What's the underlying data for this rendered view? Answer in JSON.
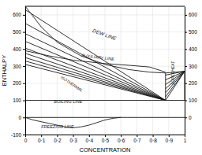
{
  "chart_data": {
    "type": "line",
    "color": "#1a1a1a",
    "grid": true,
    "xlabel": "CONCENTRATION",
    "ylabel": "ENTHALPY",
    "xlim": [
      0,
      1.0
    ],
    "ylim": [
      -100,
      650
    ],
    "xticks": [
      0,
      {
        "value": 0.1,
        "label": "0·1"
      },
      {
        "value": 0.2,
        "label": "0·2"
      },
      {
        "value": 0.3,
        "label": "0·3"
      },
      {
        "value": 0.4,
        "label": "0·4"
      },
      {
        "value": 0.5,
        "label": "0·5"
      },
      {
        "value": 0.6,
        "label": "0·6"
      },
      {
        "value": 0.7,
        "label": "0·7"
      },
      {
        "value": 0.8,
        "label": "0·8"
      },
      {
        "value": 0.9,
        "label": "0·9"
      },
      1
    ],
    "yticks": [
      -100,
      0,
      100,
      200,
      300,
      400,
      500,
      600
    ],
    "y2lim": [
      -100,
      650
    ],
    "y2ticks": [
      0,
      100,
      200,
      300,
      400,
      500,
      600
    ],
    "series": [
      {
        "x": [
          0.0,
          0.88
        ],
        "values": [
          310,
          100
        ]
      },
      {
        "x": [
          0.0,
          0.88
        ],
        "values": [
          330,
          100
        ]
      },
      {
        "x": [
          0.0,
          0.88
        ],
        "values": [
          350,
          100
        ]
      },
      {
        "x": [
          0.0,
          0.88
        ],
        "values": [
          375,
          100
        ]
      },
      {
        "x": [
          0.0,
          0.88
        ],
        "values": [
          405,
          100
        ]
      },
      {
        "x": [
          0.0,
          0.88
        ],
        "values": [
          445,
          100
        ]
      },
      {
        "x": [
          0.0,
          0.88
        ],
        "values": [
          490,
          100
        ]
      },
      {
        "x": [
          0.0,
          0.88
        ],
        "values": [
          550,
          100
        ]
      },
      {
        "x": [
          0.0,
          0.88
        ],
        "values": [
          630,
          100
        ]
      },
      {
        "x": [
          0.0,
          0.15,
          0.3,
          0.5,
          0.65,
          0.78,
          0.88
        ],
        "values": [
          390,
          360,
          335,
          315,
          305,
          295,
          265
        ]
      },
      {
        "x": [
          0.88,
          1.0
        ],
        "values": [
          100,
          270
        ]
      },
      {
        "x": [
          0.88,
          1.0
        ],
        "values": [
          120,
          270
        ]
      },
      {
        "x": [
          0.88,
          1.0
        ],
        "values": [
          145,
          270
        ]
      },
      {
        "x": [
          0.88,
          1.0
        ],
        "values": [
          168,
          270
        ]
      },
      {
        "x": [
          0.88,
          1.0
        ],
        "values": [
          192,
          270
        ]
      },
      {
        "x": [
          0.88,
          1.0
        ],
        "values": [
          220,
          270
        ]
      },
      {
        "x": [
          0.88,
          1.0
        ],
        "values": [
          248,
          270
        ]
      },
      {
        "x": [
          0.0,
          0.1,
          0.2,
          0.35,
          0.5,
          0.65,
          0.78,
          0.88,
          1.0
        ],
        "values": [
          650,
          530,
          440,
          360,
          310,
          280,
          265,
          260,
          270
        ]
      },
      {
        "x": [
          0.0,
          0.88
        ],
        "values": [
          100,
          100
        ]
      },
      {
        "x": [
          0.88,
          1.0
        ],
        "values": [
          100,
          100
        ]
      },
      {
        "x": [
          0.88,
          0.88
        ],
        "values": [
          100,
          260
        ]
      },
      {
        "x": [
          1.0,
          1.0
        ],
        "values": [
          100,
          270
        ]
      },
      {
        "x": [
          0.0,
          0.0
        ],
        "values": [
          -100,
          650
        ]
      },
      {
        "x": [
          0.0,
          0.05,
          0.1,
          0.15,
          0.2,
          0.25,
          0.3,
          0.35,
          0.4,
          0.45,
          0.5,
          0.55,
          0.6
        ],
        "values": [
          0,
          -15,
          -25,
          -35,
          -45,
          -55,
          -60,
          -55,
          -45,
          -30,
          -15,
          -5,
          0
        ]
      },
      {
        "x": [
          0.0,
          1.0
        ],
        "values": [
          0,
          0
        ]
      }
    ],
    "annotations": [
      {
        "text": "DEW LINE",
        "x": 0.42,
        "y": 500
      },
      {
        "text": "AUXILIARY LINE",
        "x": 0.35,
        "y": 355
      },
      {
        "text": "ISOTHERMAL",
        "x": 0.22,
        "y": 230
      },
      {
        "text": "BOILING LINE",
        "x": 0.18,
        "y": 82
      },
      {
        "text": "FREEZING LINE",
        "x": 0.1,
        "y": -62
      },
      {
        "text": "SUPERHEAT",
        "x": 0.915,
        "y": 190
      }
    ]
  }
}
